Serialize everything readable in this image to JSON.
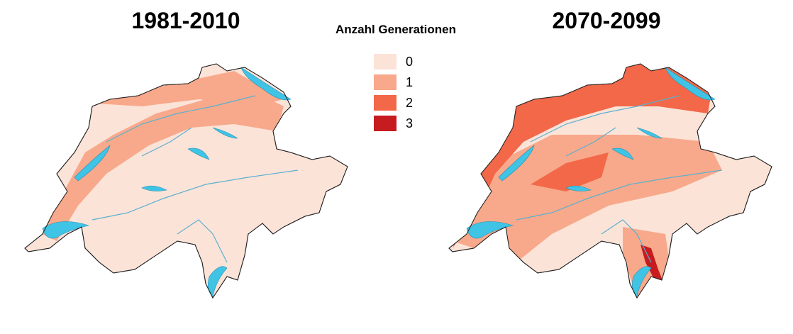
{
  "maps": [
    {
      "title": "1981-2010"
    },
    {
      "title": "2070-2099"
    }
  ],
  "legend": {
    "title": "Anzahl Generationen",
    "items": [
      {
        "label": "0",
        "color": "#fce3d8"
      },
      {
        "label": "1",
        "color": "#f8a98b"
      },
      {
        "label": "2",
        "color": "#f26849"
      },
      {
        "label": "3",
        "color": "#c61b1f"
      }
    ]
  }
}
